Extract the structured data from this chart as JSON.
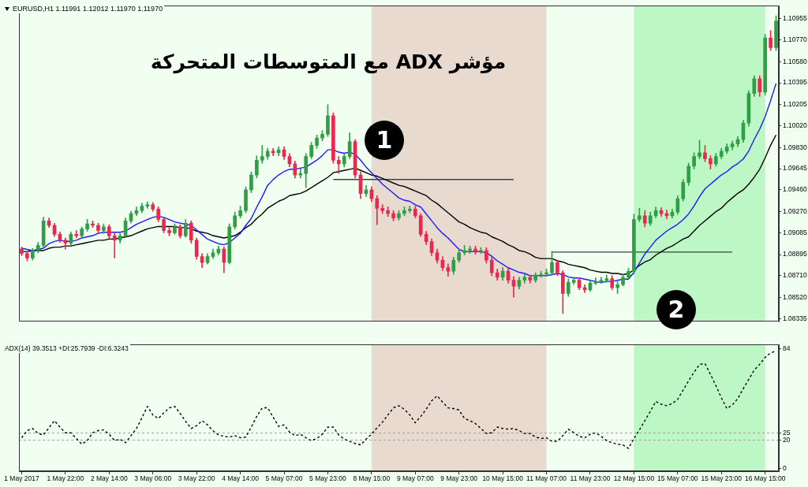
{
  "chart_data": [
    {
      "type": "candlestick",
      "title": "مؤشر ADX مع المتوسطات المتحركة",
      "subtitle": "EURUSD,H1 1.11991 1.12012 1.11970 1.11970",
      "categories": [
        "1 May 2017",
        null,
        null,
        null,
        null,
        null,
        null,
        null,
        "1 May 22:00",
        null,
        null,
        null,
        null,
        null,
        null,
        null,
        "2 May 14:00",
        null,
        null,
        null,
        null,
        null,
        null,
        null,
        "3 May 06:00",
        null,
        null,
        null,
        null,
        null,
        null,
        null,
        "3 May 22:00",
        null,
        null,
        null,
        null,
        null,
        null,
        null,
        "4 May 14:00",
        null,
        null,
        null,
        null,
        null,
        null,
        null,
        "5 May 07:00",
        null,
        null,
        null,
        null,
        null,
        null,
        null,
        "5 May 23:00",
        null,
        null,
        null,
        null,
        null,
        null,
        null,
        "8 May 15:00",
        null,
        null,
        null,
        null,
        null,
        null,
        null,
        "9 May 07:00",
        null,
        null,
        null,
        null,
        null,
        null,
        null,
        "9 May 23:00",
        null,
        null,
        null,
        null,
        null,
        null,
        null,
        "10 May 15:00",
        null,
        null,
        null,
        null,
        null,
        null,
        null,
        "11 May 07:00",
        null,
        null,
        null,
        null,
        null,
        null,
        null,
        "11 May 23:00",
        null,
        null,
        null,
        null,
        null,
        null,
        null,
        "12 May 15:00",
        null,
        null,
        null,
        null,
        null,
        null,
        null,
        "15 May 07:00",
        null,
        null,
        null,
        null,
        null,
        null,
        null,
        "15 May 23:00",
        null,
        null,
        null,
        null,
        null,
        null,
        null,
        "16 May 15:00",
        null,
        null
      ],
      "ohlc": [
        [
          1.08943,
          1.08962,
          1.08885,
          1.08904
        ],
        [
          1.08904,
          1.08923,
          1.08839,
          1.08865
        ],
        [
          1.08865,
          1.08949,
          1.08846,
          1.0893
        ],
        [
          1.0893,
          1.09001,
          1.08911,
          1.08975
        ],
        [
          1.08975,
          1.09221,
          1.08956,
          1.09189
        ],
        [
          1.09189,
          1.09215,
          1.09131,
          1.0915
        ],
        [
          1.0915,
          1.09169,
          1.09053,
          1.09072
        ],
        [
          1.09072,
          1.09092,
          1.09001,
          1.09021
        ],
        [
          1.09021,
          1.0904,
          1.08943,
          1.08995
        ],
        [
          1.08995,
          1.09092,
          1.08975,
          1.09072
        ],
        [
          1.09072,
          1.09105,
          1.0904,
          1.09059
        ],
        [
          1.09059,
          1.09137,
          1.0904,
          1.09118
        ],
        [
          1.09118,
          1.09202,
          1.09098,
          1.09163
        ],
        [
          1.09163,
          1.09189,
          1.09131,
          1.0915
        ],
        [
          1.0915,
          1.09169,
          1.09085,
          1.09105
        ],
        [
          1.09105,
          1.09163,
          1.09079,
          1.09137
        ],
        [
          1.09137,
          1.09156,
          1.09033,
          1.09059
        ],
        [
          1.09059,
          1.09085,
          1.08865,
          1.09021
        ],
        [
          1.09021,
          1.09079,
          1.08995,
          1.09059
        ],
        [
          1.09059,
          1.09215,
          1.0904,
          1.09189
        ],
        [
          1.09189,
          1.09273,
          1.09169,
          1.09253
        ],
        [
          1.09253,
          1.09312,
          1.09234,
          1.09279
        ],
        [
          1.09279,
          1.09344,
          1.0926,
          1.09318
        ],
        [
          1.09318,
          1.09357,
          1.09299,
          1.09331
        ],
        [
          1.09331,
          1.09351,
          1.09273,
          1.09292
        ],
        [
          1.09292,
          1.09312,
          1.09182,
          1.09202
        ],
        [
          1.09202,
          1.09221,
          1.09085,
          1.09105
        ],
        [
          1.09105,
          1.09131,
          1.09059,
          1.09085
        ],
        [
          1.09085,
          1.09163,
          1.09072,
          1.09137
        ],
        [
          1.09137,
          1.09156,
          1.0904,
          1.09059
        ],
        [
          1.09059,
          1.09202,
          1.09046,
          1.09169
        ],
        [
          1.09169,
          1.09189,
          1.08995,
          1.09021
        ],
        [
          1.09021,
          1.0904,
          1.08852,
          1.08878
        ],
        [
          1.08878,
          1.08904,
          1.08781,
          1.08826
        ],
        [
          1.08826,
          1.08904,
          1.08813,
          1.08878
        ],
        [
          1.08878,
          1.08943,
          1.08859,
          1.08911
        ],
        [
          1.08911,
          1.08969,
          1.08891,
          1.08943
        ],
        [
          1.08943,
          1.08962,
          1.08736,
          1.08826
        ],
        [
          1.08826,
          1.09163,
          1.08813,
          1.09137
        ],
        [
          1.09137,
          1.09266,
          1.09118,
          1.09234
        ],
        [
          1.09234,
          1.09318,
          1.09215,
          1.09279
        ],
        [
          1.09279,
          1.09486,
          1.0926,
          1.0946
        ],
        [
          1.0946,
          1.09616,
          1.09435,
          1.0959
        ],
        [
          1.0959,
          1.09758,
          1.09564,
          1.09719
        ],
        [
          1.09719,
          1.09849,
          1.09693,
          1.09752
        ],
        [
          1.09752,
          1.09823,
          1.09726,
          1.09797
        ],
        [
          1.09797,
          1.09823,
          1.09758,
          1.09784
        ],
        [
          1.09784,
          1.09836,
          1.09758,
          1.0981
        ],
        [
          1.0981,
          1.09836,
          1.09726,
          1.09752
        ],
        [
          1.09752,
          1.09778,
          1.09661,
          1.09687
        ],
        [
          1.09687,
          1.09713,
          1.09564,
          1.0959
        ],
        [
          1.0959,
          1.09642,
          1.09564,
          1.09603
        ],
        [
          1.09603,
          1.09778,
          1.0948,
          1.09752
        ],
        [
          1.09752,
          1.09875,
          1.09732,
          1.09849
        ],
        [
          1.09849,
          1.09939,
          1.09823,
          1.09913
        ],
        [
          1.09913,
          1.09978,
          1.09888,
          1.09946
        ],
        [
          1.09946,
          1.10205,
          1.09926,
          1.10107
        ],
        [
          1.10107,
          1.10133,
          1.09693,
          1.09719
        ],
        [
          1.09719,
          1.09752,
          1.09603,
          1.09687
        ],
        [
          1.09687,
          1.09778,
          1.09661,
          1.09752
        ],
        [
          1.09752,
          1.09959,
          1.09732,
          1.09881
        ],
        [
          1.09881,
          1.099,
          1.09564,
          1.0959
        ],
        [
          1.0959,
          1.09616,
          1.09383,
          1.09428
        ],
        [
          1.09428,
          1.09499,
          1.09402,
          1.0946
        ],
        [
          1.0946,
          1.09486,
          1.09357,
          1.09383
        ],
        [
          1.09383,
          1.09409,
          1.09156,
          1.09299
        ],
        [
          1.09299,
          1.09331,
          1.09253,
          1.09279
        ],
        [
          1.09279,
          1.09312,
          1.09228,
          1.09253
        ],
        [
          1.09253,
          1.09279,
          1.09189,
          1.09215
        ],
        [
          1.09215,
          1.09279,
          1.09195,
          1.09253
        ],
        [
          1.09253,
          1.09312,
          1.09234,
          1.09279
        ],
        [
          1.09279,
          1.09318,
          1.0926,
          1.09292
        ],
        [
          1.09292,
          1.09318,
          1.09215,
          1.09234
        ],
        [
          1.09234,
          1.09253,
          1.09053,
          1.09072
        ],
        [
          1.09072,
          1.09098,
          1.08982,
          1.09008
        ],
        [
          1.09008,
          1.09033,
          1.08885,
          1.08911
        ],
        [
          1.08911,
          1.08943,
          1.0882,
          1.08846
        ],
        [
          1.08846,
          1.08878,
          1.08755,
          1.08781
        ],
        [
          1.08781,
          1.08813,
          1.08704,
          1.08749
        ],
        [
          1.08749,
          1.08872,
          1.08723,
          1.08846
        ],
        [
          1.08846,
          1.08943,
          1.08826,
          1.08911
        ],
        [
          1.08911,
          1.08975,
          1.08891,
          1.0893
        ],
        [
          1.0893,
          1.08969,
          1.08904,
          1.08943
        ],
        [
          1.08943,
          1.08969,
          1.08898,
          1.08923
        ],
        [
          1.08923,
          1.08956,
          1.08904,
          1.0893
        ],
        [
          1.0893,
          1.08956,
          1.0882,
          1.08846
        ],
        [
          1.08846,
          1.08872,
          1.0871,
          1.08736
        ],
        [
          1.08736,
          1.08768,
          1.08671,
          1.08697
        ],
        [
          1.08697,
          1.08781,
          1.08671,
          1.08749
        ],
        [
          1.08749,
          1.08775,
          1.08645,
          1.08671
        ],
        [
          1.08671,
          1.08704,
          1.08522,
          1.08619
        ],
        [
          1.08619,
          1.08697,
          1.08594,
          1.08671
        ],
        [
          1.08671,
          1.08723,
          1.08645,
          1.08697
        ],
        [
          1.08697,
          1.08716,
          1.08645,
          1.08671
        ],
        [
          1.08671,
          1.08736,
          1.08652,
          1.08716
        ],
        [
          1.08716,
          1.08749,
          1.08697,
          1.08723
        ],
        [
          1.08723,
          1.08768,
          1.08704,
          1.08736
        ],
        [
          1.08736,
          1.08923,
          1.08716,
          1.08826
        ],
        [
          1.08826,
          1.08846,
          1.0871,
          1.08736
        ],
        [
          1.08736,
          1.08755,
          1.0838,
          1.08555
        ],
        [
          1.08555,
          1.08684,
          1.08529,
          1.08652
        ],
        [
          1.08652,
          1.08697,
          1.08632,
          1.08671
        ],
        [
          1.08671,
          1.08691,
          1.08587,
          1.08606
        ],
        [
          1.08606,
          1.08632,
          1.08561,
          1.08587
        ],
        [
          1.08587,
          1.08671,
          1.08574,
          1.08645
        ],
        [
          1.08645,
          1.08691,
          1.08632,
          1.08658
        ],
        [
          1.08658,
          1.08697,
          1.08645,
          1.08671
        ],
        [
          1.08671,
          1.08716,
          1.08652,
          1.08684
        ],
        [
          1.08684,
          1.0871,
          1.08587,
          1.08606
        ],
        [
          1.08606,
          1.08658,
          1.08555,
          1.08632
        ],
        [
          1.08632,
          1.08723,
          1.08619,
          1.08697
        ],
        [
          1.08697,
          1.08775,
          1.08684,
          1.08749
        ],
        [
          1.08749,
          1.09247,
          1.08723,
          1.09202
        ],
        [
          1.09202,
          1.09299,
          1.09182,
          1.09234
        ],
        [
          1.09234,
          1.09279,
          1.09137,
          1.09169
        ],
        [
          1.09169,
          1.09266,
          1.0915,
          1.09234
        ],
        [
          1.09234,
          1.09312,
          1.09215,
          1.09279
        ],
        [
          1.09279,
          1.09305,
          1.09228,
          1.09253
        ],
        [
          1.09253,
          1.09286,
          1.09208,
          1.09234
        ],
        [
          1.09234,
          1.09292,
          1.09215,
          1.09266
        ],
        [
          1.09266,
          1.09409,
          1.09247,
          1.09383
        ],
        [
          1.09383,
          1.09551,
          1.09363,
          1.09525
        ],
        [
          1.09525,
          1.09693,
          1.09499,
          1.09668
        ],
        [
          1.09668,
          1.09784,
          1.09642,
          1.09752
        ],
        [
          1.09752,
          1.09894,
          1.09732,
          1.09784
        ],
        [
          1.09784,
          1.09849,
          1.09706,
          1.09732
        ],
        [
          1.09732,
          1.09758,
          1.09642,
          1.09687
        ],
        [
          1.09687,
          1.09778,
          1.09668,
          1.09752
        ],
        [
          1.09752,
          1.09823,
          1.09732,
          1.09797
        ],
        [
          1.09797,
          1.09862,
          1.09778,
          1.09836
        ],
        [
          1.09836,
          1.09888,
          1.0981,
          1.09862
        ],
        [
          1.09862,
          1.09926,
          1.09836,
          1.099
        ],
        [
          1.099,
          1.10069,
          1.09875,
          1.10043
        ],
        [
          1.10043,
          1.10327,
          1.10017,
          1.10302
        ],
        [
          1.10302,
          1.10457,
          1.10276,
          1.10431
        ],
        [
          1.10431,
          1.10457,
          1.10276,
          1.10315
        ],
        [
          1.10315,
          1.10819,
          1.10289,
          1.10787
        ],
        [
          1.10787,
          1.10852,
          1.10677,
          1.10703
        ],
        [
          1.10703,
          1.10981,
          1.10677,
          1.10936
        ]
      ],
      "colors": [
        "#e8284f",
        "#e8284f",
        "#2f9e44",
        "#2f9e44",
        "#2f9e44",
        "#e8284f",
        "#e8284f",
        "#e8284f",
        "#e8284f",
        "#2f9e44",
        "#e8284f",
        "#2f9e44",
        "#2f9e44",
        "#e8284f",
        "#e8284f",
        "#2f9e44",
        "#e8284f",
        "#e8284f",
        "#2f9e44",
        "#2f9e44",
        "#2f9e44",
        "#2f9e44",
        "#2f9e44",
        "#2f9e44",
        "#e8284f",
        "#e8284f",
        "#e8284f",
        "#e8284f",
        "#2f9e44",
        "#e8284f",
        "#2f9e44",
        "#e8284f",
        "#e8284f",
        "#e8284f",
        "#2f9e44",
        "#2f9e44",
        "#2f9e44",
        "#e8284f",
        "#2f9e44",
        "#2f9e44",
        "#2f9e44",
        "#2f9e44",
        "#2f9e44",
        "#2f9e44",
        "#2f9e44",
        "#2f9e44",
        "#e8284f",
        "#2f9e44",
        "#e8284f",
        "#e8284f",
        "#e8284f",
        "#2f9e44",
        "#2f9e44",
        "#2f9e44",
        "#2f9e44",
        "#2f9e44",
        "#2f9e44",
        "#e8284f",
        "#e8284f",
        "#2f9e44",
        "#2f9e44",
        "#e8284f",
        "#e8284f",
        "#2f9e44",
        "#e8284f",
        "#e8284f",
        "#e8284f",
        "#e8284f",
        "#e8284f",
        "#2f9e44",
        "#2f9e44",
        "#2f9e44",
        "#e8284f",
        "#e8284f",
        "#e8284f",
        "#e8284f",
        "#e8284f",
        "#e8284f",
        "#e8284f",
        "#2f9e44",
        "#2f9e44",
        "#2f9e44",
        "#2f9e44",
        "#e8284f",
        "#2f9e44",
        "#e8284f",
        "#e8284f",
        "#e8284f",
        "#2f9e44",
        "#e8284f",
        "#e8284f",
        "#2f9e44",
        "#2f9e44",
        "#e8284f",
        "#2f9e44",
        "#2f9e44",
        "#2f9e44",
        "#2f9e44",
        "#e8284f",
        "#e8284f",
        "#2f9e44",
        "#2f9e44",
        "#e8284f",
        "#e8284f",
        "#2f9e44",
        "#2f9e44",
        "#2f9e44",
        "#2f9e44",
        "#e8284f",
        "#2f9e44",
        "#2f9e44",
        "#2f9e44",
        "#2f9e44",
        "#2f9e44",
        "#e8284f",
        "#2f9e44",
        "#2f9e44",
        "#e8284f",
        "#e8284f",
        "#2f9e44",
        "#2f9e44",
        "#2f9e44",
        "#2f9e44",
        "#2f9e44",
        "#2f9e44",
        "#e8284f",
        "#e8284f",
        "#2f9e44",
        "#2f9e44",
        "#2f9e44",
        "#2f9e44",
        "#2f9e44",
        "#2f9e44",
        "#2f9e44",
        "#2f9e44",
        "#e8284f",
        "#2f9e44",
        "#e8284f",
        "#2f9e44"
      ],
      "series": [
        {
          "type": "line",
          "color": "#1a1aff",
          "values": [
            1.0895,
            1.0894,
            1.0893,
            1.0894,
            1.0895,
            1.0899,
            1.0901,
            1.0902,
            1.0901,
            1.0901,
            1.0902,
            1.0904,
            1.0905,
            1.0906,
            1.0908,
            1.0909,
            1.0909,
            1.0909,
            1.0909,
            1.091,
            1.0913,
            1.0916,
            1.0918,
            1.092,
            1.0922,
            1.0923,
            1.0922,
            1.092,
            1.0918,
            1.0917,
            1.0916,
            1.0915,
            1.0911,
            1.0907,
            1.0903,
            1.0901,
            1.0899,
            1.0898,
            1.09,
            1.0904,
            1.0908,
            1.0915,
            1.0921,
            1.0931,
            1.094,
            1.095,
            1.0955,
            1.0959,
            1.0962,
            1.0964,
            1.0964,
            1.0965,
            1.0966,
            1.0969,
            1.0972,
            1.0976,
            1.0981,
            1.0981,
            1.0979,
            1.0978,
            1.0979,
            1.0977,
            1.0972,
            1.0966,
            1.0961,
            1.0956,
            1.0951,
            1.0947,
            1.0943,
            1.0939,
            1.0937,
            1.0936,
            1.0933,
            1.0931,
            1.0925,
            1.0919,
            1.0913,
            1.0908,
            1.0904,
            1.0899,
            1.0894,
            1.0892,
            1.0892,
            1.0892,
            1.0892,
            1.0891,
            1.0888,
            1.0884,
            1.0881,
            1.0878,
            1.0876,
            1.0874,
            1.0873,
            1.0871,
            1.0871,
            1.0871,
            1.0871,
            1.0872,
            1.0873,
            1.0872,
            1.087,
            1.0869,
            1.0869,
            1.0868,
            1.0867,
            1.0866,
            1.0865,
            1.0866,
            1.0866,
            1.0867,
            1.0868,
            1.0868,
            1.0874,
            1.0882,
            1.089,
            1.0896,
            1.0902,
            1.0906,
            1.091,
            1.0913,
            1.0916,
            1.092,
            1.0925,
            1.0932,
            1.094,
            1.0947,
            1.0951,
            1.0955,
            1.0959,
            1.0962,
            1.0966,
            1.0969,
            1.0973,
            1.098,
            1.099,
            1.0999,
            1.101,
            1.1024,
            1.1039
          ]
        },
        {
          "type": "line",
          "color": "#000000",
          "values": [
            1.0892,
            1.0892,
            1.0893,
            1.0893,
            1.0893,
            1.0895,
            1.0896,
            1.0896,
            1.0897,
            1.0897,
            1.0898,
            1.0899,
            1.09,
            1.0901,
            1.0902,
            1.0902,
            1.0903,
            1.0903,
            1.0904,
            1.0905,
            1.0906,
            1.0908,
            1.091,
            1.0912,
            1.0913,
            1.0914,
            1.0914,
            1.0914,
            1.0914,
            1.0913,
            1.0913,
            1.0912,
            1.091,
            1.0909,
            1.0908,
            1.0906,
            1.0905,
            1.0904,
            1.0905,
            1.0906,
            1.0909,
            1.0913,
            1.0916,
            1.0921,
            1.0925,
            1.093,
            1.0933,
            1.0936,
            1.0938,
            1.0941,
            1.0942,
            1.0943,
            1.0945,
            1.0948,
            1.0951,
            1.0954,
            1.0957,
            1.0961,
            1.0962,
            1.0963,
            1.0964,
            1.0965,
            1.0963,
            1.0961,
            1.0959,
            1.0958,
            1.0956,
            1.0954,
            1.0952,
            1.095,
            1.0949,
            1.0947,
            1.0945,
            1.0943,
            1.0941,
            1.0937,
            1.0934,
            1.093,
            1.0926,
            1.0922,
            1.0918,
            1.0916,
            1.0913,
            1.0911,
            1.0909,
            1.0908,
            1.0905,
            1.0903,
            1.0901,
            1.0898,
            1.0896,
            1.0893,
            1.0892,
            1.089,
            1.0887,
            1.0886,
            1.0886,
            1.0886,
            1.0884,
            1.0883,
            1.0881,
            1.088,
            1.0879,
            1.0878,
            1.0876,
            1.0875,
            1.0874,
            1.0874,
            1.0873,
            1.0873,
            1.0872,
            1.0873,
            1.0876,
            1.088,
            1.0883,
            1.0885,
            1.0889,
            1.0892,
            1.0895,
            1.0897,
            1.09,
            1.0903,
            1.0905,
            1.091,
            1.0915,
            1.0919,
            1.0923,
            1.0927,
            1.093,
            1.0935,
            1.0939,
            1.0943,
            1.0946,
            1.0951,
            1.0957,
            1.0964,
            1.0974,
            1.0985,
            1.0994
          ]
        },
        {
          "type": "line",
          "color": "#404040",
          "values": [
            null,
            null,
            null,
            null,
            null,
            null,
            null,
            null,
            null,
            null,
            null,
            null,
            null,
            null,
            null,
            null,
            null,
            null,
            null,
            null,
            null,
            null,
            null,
            null,
            null,
            null,
            null,
            null,
            null,
            null,
            null,
            null,
            null,
            null,
            null,
            null,
            null,
            null,
            null,
            null,
            null,
            null,
            null,
            null,
            null,
            null,
            null,
            null,
            null,
            null,
            null,
            null,
            null,
            null,
            null,
            null,
            null,
            1.09551,
            1.09551,
            1.09551,
            1.09551,
            1.09551,
            1.09551,
            1.09551,
            1.09551,
            1.09551,
            1.09551,
            1.09551,
            1.09551,
            1.09551,
            1.09551,
            1.09551,
            1.09551,
            1.09551,
            1.09551,
            1.09551,
            1.09551,
            1.09551,
            1.09551,
            1.09551,
            1.09551,
            1.09551,
            1.09551,
            1.09551,
            1.09551,
            1.09551,
            1.09551,
            1.09551,
            1.09551,
            1.09551,
            1.09551,
            null,
            null,
            null,
            null,
            null,
            null,
            null,
            null,
            null,
            null,
            null,
            null,
            null,
            null,
            null,
            null,
            null,
            null,
            null,
            null,
            null,
            null,
            null,
            null,
            null,
            null,
            null,
            null,
            null,
            null,
            null,
            null,
            null,
            null,
            null,
            null,
            null,
            null,
            null,
            null,
            null,
            null,
            null,
            null,
            null,
            null,
            null,
            null
          ]
        },
        {
          "type": "line",
          "color": "#404040",
          "values": [
            null,
            null,
            null,
            null,
            null,
            null,
            null,
            null,
            null,
            null,
            null,
            null,
            null,
            null,
            null,
            null,
            null,
            null,
            null,
            null,
            null,
            null,
            null,
            null,
            null,
            null,
            null,
            null,
            null,
            null,
            null,
            null,
            null,
            null,
            null,
            null,
            null,
            null,
            null,
            null,
            null,
            null,
            null,
            null,
            null,
            null,
            null,
            null,
            null,
            null,
            null,
            null,
            null,
            null,
            null,
            null,
            null,
            null,
            null,
            null,
            null,
            null,
            null,
            null,
            null,
            null,
            null,
            null,
            null,
            null,
            null,
            null,
            null,
            null,
            null,
            null,
            null,
            null,
            null,
            null,
            null,
            null,
            null,
            null,
            null,
            null,
            null,
            null,
            null,
            null,
            null,
            null,
            null,
            null,
            null,
            null,
            null,
            1.08917,
            1.08917,
            1.08917,
            1.08917,
            1.08917,
            1.08917,
            1.08917,
            1.08917,
            1.08917,
            1.08917,
            1.08917,
            1.08917,
            1.08917,
            1.08917,
            1.08917,
            1.08917,
            1.08917,
            1.08917,
            1.08917,
            1.08917,
            1.08917,
            1.08917,
            1.08917,
            1.08917,
            1.08917,
            1.08917,
            1.08917,
            1.08917,
            1.08917,
            1.08917,
            1.08917,
            1.08917,
            1.08917,
            1.08917,
            null,
            null,
            null,
            null,
            null,
            null,
            null,
            null
          ]
        }
      ],
      "ylim": [
        1.0831,
        1.1107
      ],
      "yticks": [
        1.10955,
        {
          "value": 1.1077,
          "label": "1.10770"
        },
        {
          "value": 1.1058,
          "label": "1.10580"
        },
        1.10395,
        1.10205,
        {
          "value": 1.1002,
          "label": "1.10020"
        },
        {
          "value": 1.0983,
          "label": "1.09830"
        },
        1.09645,
        {
          "value": 1.0946,
          "label": "1.09460"
        },
        {
          "value": 1.0927,
          "label": "1.09270"
        },
        1.09085,
        1.08895,
        {
          "value": 1.0871,
          "label": "1.08710"
        },
        {
          "value": 1.0852,
          "label": "1.08520"
        },
        1.08335
      ],
      "tick_labels": "y",
      "bands": [
        {
          "axis": "x",
          "from": "8 May 15:00",
          "to": "11 May 07:00",
          "color": "#e8dacf"
        },
        {
          "axis": "x",
          "from": "12 May 15:00",
          "to": "16 May 15:00",
          "color": "#bdf7c5"
        }
      ],
      "annotations": [
        "1",
        "2"
      ]
    },
    {
      "type": "line",
      "title": "ADX(14) 39.3513 +DI:25.7939 -DI:6.3243",
      "categories": [
        "1 May 2017",
        null,
        null,
        null,
        null,
        null,
        null,
        null,
        "1 May 22:00",
        null,
        null,
        null,
        null,
        null,
        null,
        null,
        "2 May 14:00",
        null,
        null,
        null,
        null,
        null,
        null,
        null,
        "3 May 06:00",
        null,
        null,
        null,
        null,
        null,
        null,
        null,
        "3 May 22:00",
        null,
        null,
        null,
        null,
        null,
        null,
        null,
        "4 May 14:00",
        null,
        null,
        null,
        null,
        null,
        null,
        null,
        "5 May 07:00",
        null,
        null,
        null,
        null,
        null,
        null,
        null,
        "5 May 23:00",
        null,
        null,
        null,
        null,
        null,
        null,
        null,
        "8 May 15:00",
        null,
        null,
        null,
        null,
        null,
        null,
        null,
        "9 May 07:00",
        null,
        null,
        null,
        null,
        null,
        null,
        null,
        "9 May 23:00",
        null,
        null,
        null,
        null,
        null,
        null,
        null,
        "10 May 15:00",
        null,
        null,
        null,
        null,
        null,
        null,
        null,
        "11 May 07:00",
        null,
        null,
        null,
        null,
        null,
        null,
        null,
        "11 May 23:00",
        null,
        null,
        null,
        null,
        null,
        null,
        null,
        "12 May 15:00",
        null,
        null,
        null,
        null,
        null,
        null,
        null,
        "15 May 07:00",
        null,
        null,
        null,
        null,
        null,
        null,
        null,
        "15 May 23:00",
        null,
        null,
        null,
        null,
        null,
        null,
        null,
        "16 May 15:00",
        null,
        null
      ],
      "series": [
        {
          "color": "#000000",
          "values": [
            21.5,
            26.5,
            28,
            24.5,
            23.5,
            28.5,
            33.5,
            29,
            25,
            25,
            21,
            17,
            19.5,
            25,
            26.5,
            27,
            24,
            19.5,
            20.5,
            18,
            23,
            28,
            35.5,
            43.5,
            37.5,
            35,
            39,
            42.5,
            43.5,
            38.5,
            33,
            28,
            30,
            33.5,
            30.5,
            26.5,
            23.5,
            22.5,
            22,
            23,
            21.5,
            22,
            29,
            36.5,
            42.5,
            42.5,
            36,
            29.5,
            30.5,
            25.5,
            23,
            24,
            21.5,
            19.5,
            21,
            24,
            29,
            29,
            23.5,
            20.5,
            19,
            17.5,
            16.5,
            20.5,
            24,
            28.5,
            32.5,
            37.5,
            42.5,
            44,
            41.5,
            37.5,
            32,
            36.5,
            41.5,
            47.5,
            51,
            46.5,
            42.5,
            42,
            41,
            35,
            33.5,
            31.5,
            28,
            24.5,
            25,
            29,
            28,
            27.5,
            28,
            26.5,
            24.5,
            24.5,
            22,
            21,
            21.5,
            19,
            19,
            23,
            27.5,
            25,
            22.5,
            21.5,
            24,
            25,
            22.5,
            19.5,
            18,
            17,
            16.5,
            14,
            21,
            27,
            33.5,
            40,
            47,
            45,
            44,
            45.5,
            48.5,
            55,
            61.5,
            67.5,
            73,
            73.5,
            66,
            58,
            49.5,
            42,
            44.5,
            49,
            56,
            62.5,
            69,
            73,
            78,
            81,
            82.5
          ]
        }
      ],
      "line_style": "dashed",
      "ylim": [
        -2,
        87
      ],
      "yticks": [
        0,
        20,
        25,
        84
      ],
      "ref_lines": [
        {
          "axis": "y",
          "value": 25,
          "color": "#a0a0a0",
          "line_style": "dashed"
        },
        {
          "axis": "y",
          "value": 20,
          "color": "#a0a0a0",
          "line_style": "dashed"
        }
      ],
      "bands": [
        {
          "axis": "x",
          "from": "8 May 15:00",
          "to": "11 May 07:00",
          "color": "#e8dacf"
        },
        {
          "axis": "x",
          "from": "12 May 15:00",
          "to": "16 May 15:00",
          "color": "#bdf7c5"
        }
      ]
    }
  ]
}
